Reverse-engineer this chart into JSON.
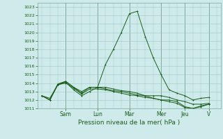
{
  "title": "Pression niveau de la mer( hPa )",
  "background_color": "#ceeaea",
  "grid_color": "#9ec9c9",
  "line_color": "#1a5c1a",
  "ylim": [
    1011,
    1023.5
  ],
  "yticks": [
    1011,
    1012,
    1013,
    1014,
    1015,
    1016,
    1017,
    1018,
    1019,
    1020,
    1021,
    1022,
    1023
  ],
  "day_labels": [
    "Sam",
    "Lun",
    "Mar",
    "Mer",
    "Jeu",
    "V"
  ],
  "day_x": [
    3,
    7,
    11,
    15,
    18,
    21
  ],
  "xmax": 22,
  "lines": [
    {
      "x": [
        0,
        1,
        2,
        3,
        4,
        5,
        6,
        7,
        8,
        9,
        10,
        11,
        12,
        13,
        14,
        15,
        16,
        17,
        18,
        19,
        20,
        21
      ],
      "y": [
        1012.5,
        1012.0,
        1013.8,
        1014.2,
        1013.5,
        1012.8,
        1013.5,
        1013.5,
        1013.5,
        1013.3,
        1013.1,
        1013.0,
        1012.8,
        1012.5,
        1012.5,
        1012.5,
        1012.3,
        1012.0,
        1011.8,
        1011.5,
        1011.5,
        1011.6
      ]
    },
    {
      "x": [
        0,
        1,
        2,
        3,
        4,
        5,
        6,
        7,
        8,
        9,
        10,
        11,
        12,
        13,
        14,
        15,
        16,
        17,
        18,
        19,
        20,
        21
      ],
      "y": [
        1012.5,
        1012.0,
        1013.9,
        1014.2,
        1013.5,
        1013.0,
        1013.5,
        1013.5,
        1013.3,
        1013.1,
        1013.0,
        1012.8,
        1012.6,
        1012.5,
        1012.2,
        1012.0,
        1012.0,
        1011.8,
        1011.2,
        1011.0,
        1011.3,
        1011.5
      ]
    },
    {
      "x": [
        0,
        1,
        2,
        3,
        4,
        5,
        6,
        7,
        8,
        9,
        10,
        11,
        12,
        13,
        14,
        15,
        16,
        17,
        18,
        19,
        20,
        21
      ],
      "y": [
        1012.5,
        1012.2,
        1013.8,
        1014.0,
        1013.4,
        1012.7,
        1013.3,
        1013.3,
        1013.2,
        1013.0,
        1012.8,
        1012.6,
        1012.5,
        1012.3,
        1012.2,
        1012.0,
        1011.8,
        1011.6,
        1011.1,
        1011.0,
        1011.2,
        1011.5
      ]
    },
    {
      "x": [
        0,
        1,
        2,
        3,
        4,
        5,
        6,
        7,
        8,
        9,
        10,
        11,
        12,
        13,
        14,
        15,
        16,
        17,
        18,
        19,
        20,
        21
      ],
      "y": [
        1012.5,
        1012.0,
        1013.8,
        1014.1,
        1013.2,
        1012.5,
        1013.0,
        1013.5,
        1016.2,
        1018.0,
        1020.0,
        1022.2,
        1022.5,
        1019.5,
        1017.0,
        1015.0,
        1013.2,
        1012.8,
        1012.5,
        1012.0,
        1012.2,
        1012.3
      ]
    }
  ]
}
